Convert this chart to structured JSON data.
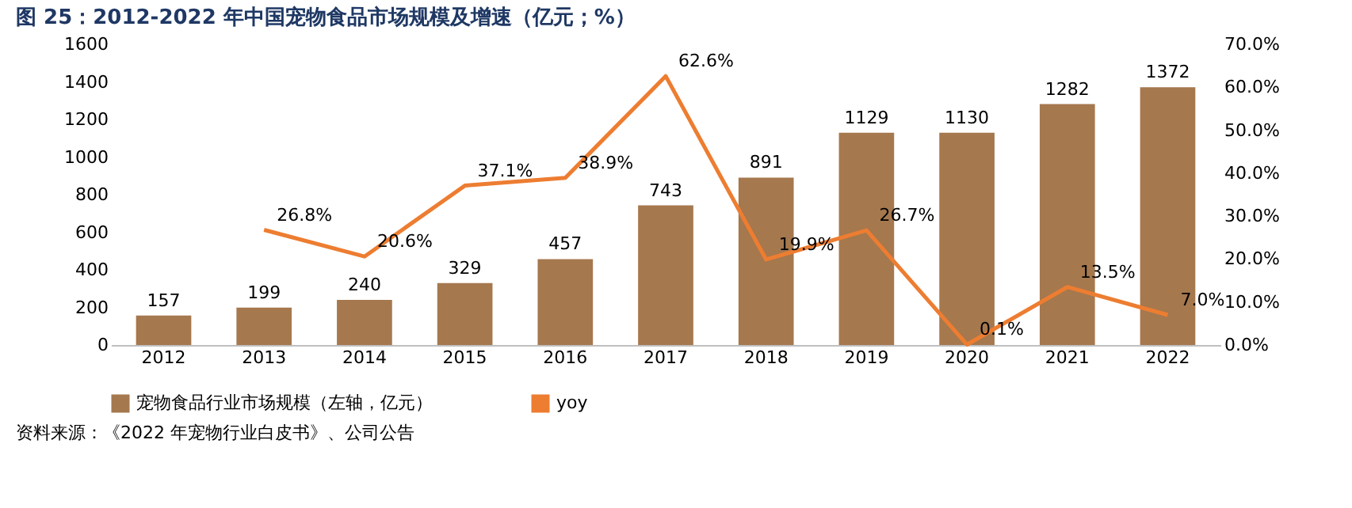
{
  "chart_data": {
    "type": "bar",
    "title": "图 25：2012-2022 年中国宠物食品市场规模及增速（亿元；%）",
    "categories": [
      "2012",
      "2013",
      "2014",
      "2015",
      "2016",
      "2017",
      "2018",
      "2019",
      "2020",
      "2021",
      "2022"
    ],
    "series": [
      {
        "name": "宠物食品行业市场规模（左轴，亿元）",
        "color": "#a5784e",
        "values": [
          157,
          199,
          240,
          329,
          457,
          743,
          891,
          1129,
          1130,
          1282,
          1372
        ]
      },
      {
        "name": "yoy",
        "type": "line",
        "axis": "y2",
        "color": "#ed7d31",
        "values": [
          null,
          26.8,
          20.6,
          37.1,
          38.9,
          62.6,
          19.9,
          26.7,
          0.1,
          13.5,
          7.0
        ],
        "value_labels": [
          null,
          "26.8%",
          "20.6%",
          "37.1%",
          "38.9%",
          "62.6%",
          "19.9%",
          "26.7%",
          "0.1%",
          "13.5%",
          "7.0%"
        ]
      }
    ],
    "data_labels": true,
    "ylim": [
      0,
      1600
    ],
    "yticks": [
      0,
      200,
      400,
      600,
      800,
      1000,
      1200,
      1400,
      1600
    ],
    "y2lim": [
      0,
      70
    ],
    "y2ticks": [
      {
        "value": 0,
        "label": "0.0%"
      },
      {
        "value": 10,
        "label": "10.0%"
      },
      {
        "value": 20,
        "label": "20.0%"
      },
      {
        "value": 30,
        "label": "30.0%"
      },
      {
        "value": 40,
        "label": "40.0%"
      },
      {
        "value": 50,
        "label": "50.0%"
      },
      {
        "value": 60,
        "label": "60.0%"
      },
      {
        "value": 70,
        "label": "70.0%"
      }
    ],
    "grid": false,
    "legend": "bottom",
    "marker": "none",
    "line_style": "solid",
    "annotations": [
      "资料来源：《2022 年宠物行业白皮书》、公司公告"
    ]
  }
}
